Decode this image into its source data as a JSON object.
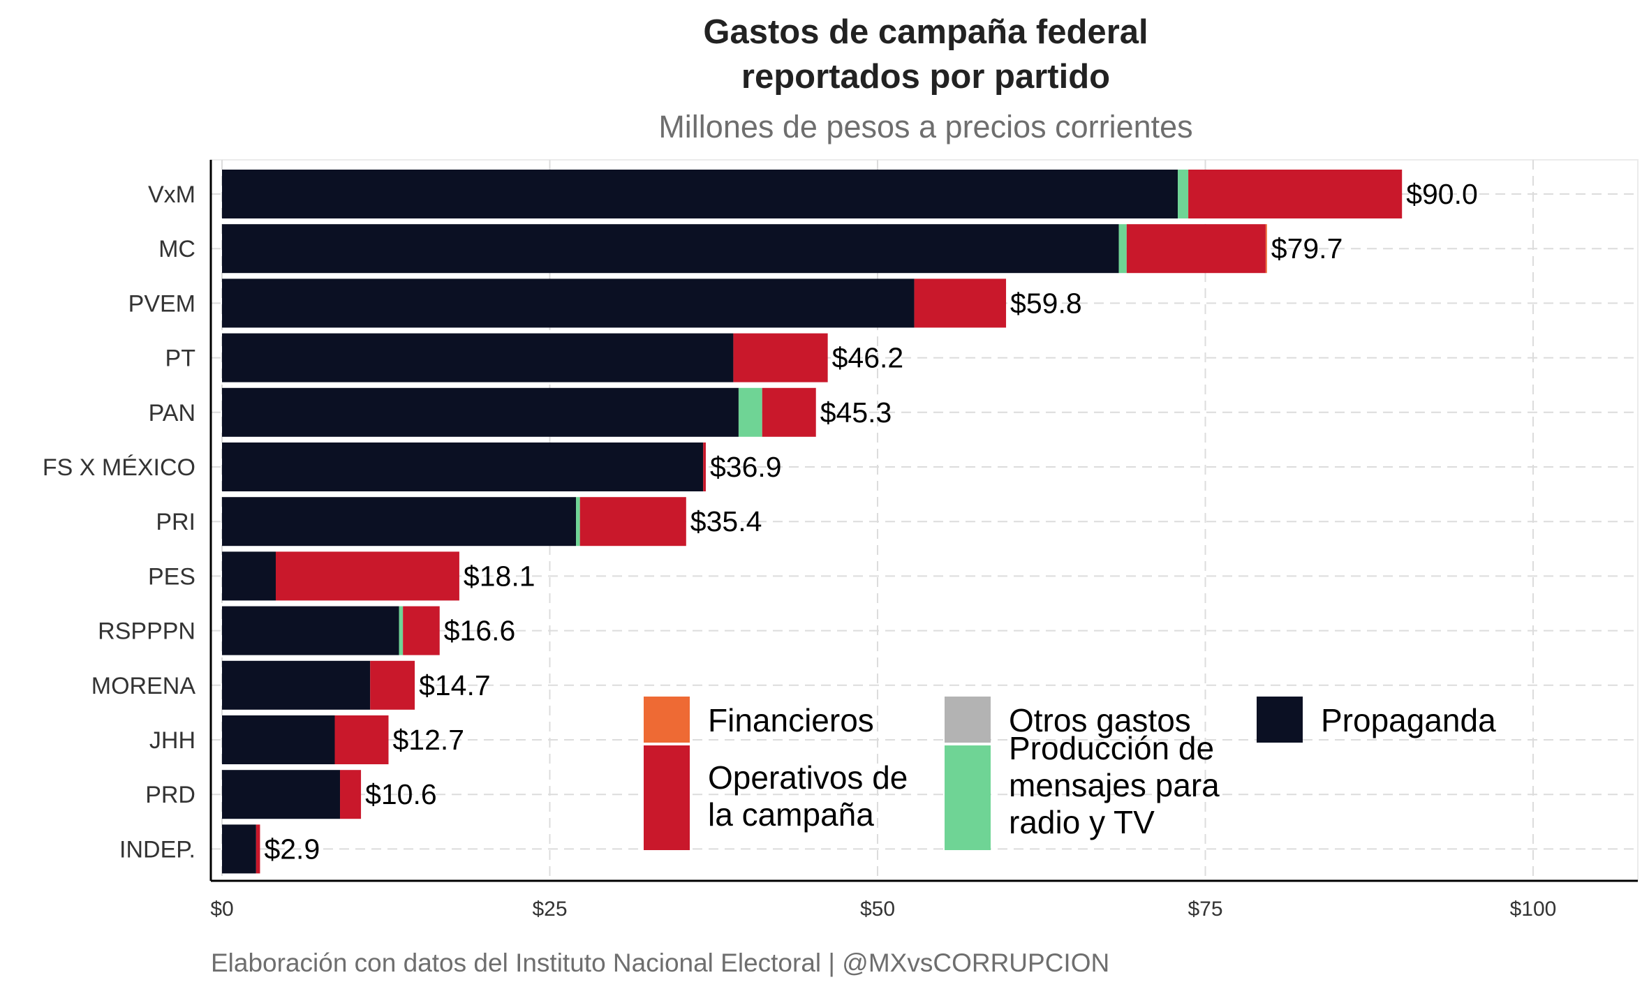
{
  "chart_data": {
    "type": "bar",
    "orientation": "horizontal",
    "stacked": true,
    "title_lines": [
      "Gastos de campaña federal",
      "reportados por partido"
    ],
    "subtitle": "Millones de pesos a precios corrientes",
    "caption": "Elaboración con datos del Instituto Nacional Electoral | @MXvsCORRUPCION",
    "xlim": [
      0,
      108
    ],
    "x_ticks": [
      0,
      25,
      50,
      75,
      100
    ],
    "x_tick_labels": [
      "$0",
      "$25",
      "$50",
      "$75",
      "$100"
    ],
    "grid": "dashed",
    "legend_position": "inside-bottom-right",
    "categories": [
      "VxM",
      "MC",
      "PVEM",
      "PT",
      "PAN",
      "FS X MÉXICO",
      "PRI",
      "PES",
      "RSPPPN",
      "MORENA",
      "JHH",
      "PRD",
      "INDEP."
    ],
    "totals": [
      90.0,
      79.7,
      59.8,
      46.2,
      45.3,
      36.9,
      35.4,
      18.1,
      16.6,
      14.7,
      12.7,
      10.6,
      2.9
    ],
    "total_labels": [
      "$90.0",
      "$79.7",
      "$59.8",
      "$46.2",
      "$45.3",
      "$36.9",
      "$35.4",
      "$18.1",
      "$16.6",
      "$14.7",
      "$12.7",
      "$10.6",
      "$2.9"
    ],
    "series": [
      {
        "key": "propaganda",
        "name": "Propaganda",
        "color": "#0b1023",
        "values": [
          72.9,
          68.4,
          52.8,
          39.0,
          39.4,
          36.7,
          27.0,
          4.1,
          13.5,
          11.3,
          8.6,
          9.0,
          2.6
        ]
      },
      {
        "key": "produccion",
        "name": "Producción de mensajes para radio y TV",
        "color": "#6fd495",
        "values": [
          0.8,
          0.6,
          0.0,
          0.0,
          1.8,
          0.0,
          0.3,
          0.0,
          0.3,
          0.0,
          0.0,
          0.0,
          0.0
        ]
      },
      {
        "key": "otros",
        "name": "Otros gastos",
        "color": "#b3b3b3",
        "values": [
          0,
          0,
          0,
          0,
          0,
          0,
          0,
          0,
          0,
          0,
          0,
          0,
          0
        ]
      },
      {
        "key": "operativos",
        "name": "Operativos de la campaña",
        "color": "#c9182b",
        "values": [
          16.3,
          10.6,
          7.0,
          7.2,
          4.1,
          0.2,
          8.1,
          14.0,
          2.8,
          3.4,
          4.1,
          1.6,
          0.3
        ]
      },
      {
        "key": "financieros",
        "name": "Financieros",
        "color": "#ee6a34",
        "values": [
          0,
          0.1,
          0,
          0,
          0,
          0,
          0,
          0,
          0,
          0,
          0,
          0,
          0
        ]
      }
    ],
    "legend": [
      {
        "label_lines": [
          "Financieros"
        ],
        "color": "#ee6a34"
      },
      {
        "label_lines": [
          "Otros gastos"
        ],
        "color": "#b3b3b3"
      },
      {
        "label_lines": [
          "Propaganda"
        ],
        "color": "#0b1023"
      },
      {
        "label_lines": [
          "Operativos de",
          "la campaña"
        ],
        "color": "#c9182b"
      },
      {
        "label_lines": [
          "Producción de",
          "mensajes para",
          "radio y TV"
        ],
        "color": "#6fd495"
      }
    ]
  }
}
